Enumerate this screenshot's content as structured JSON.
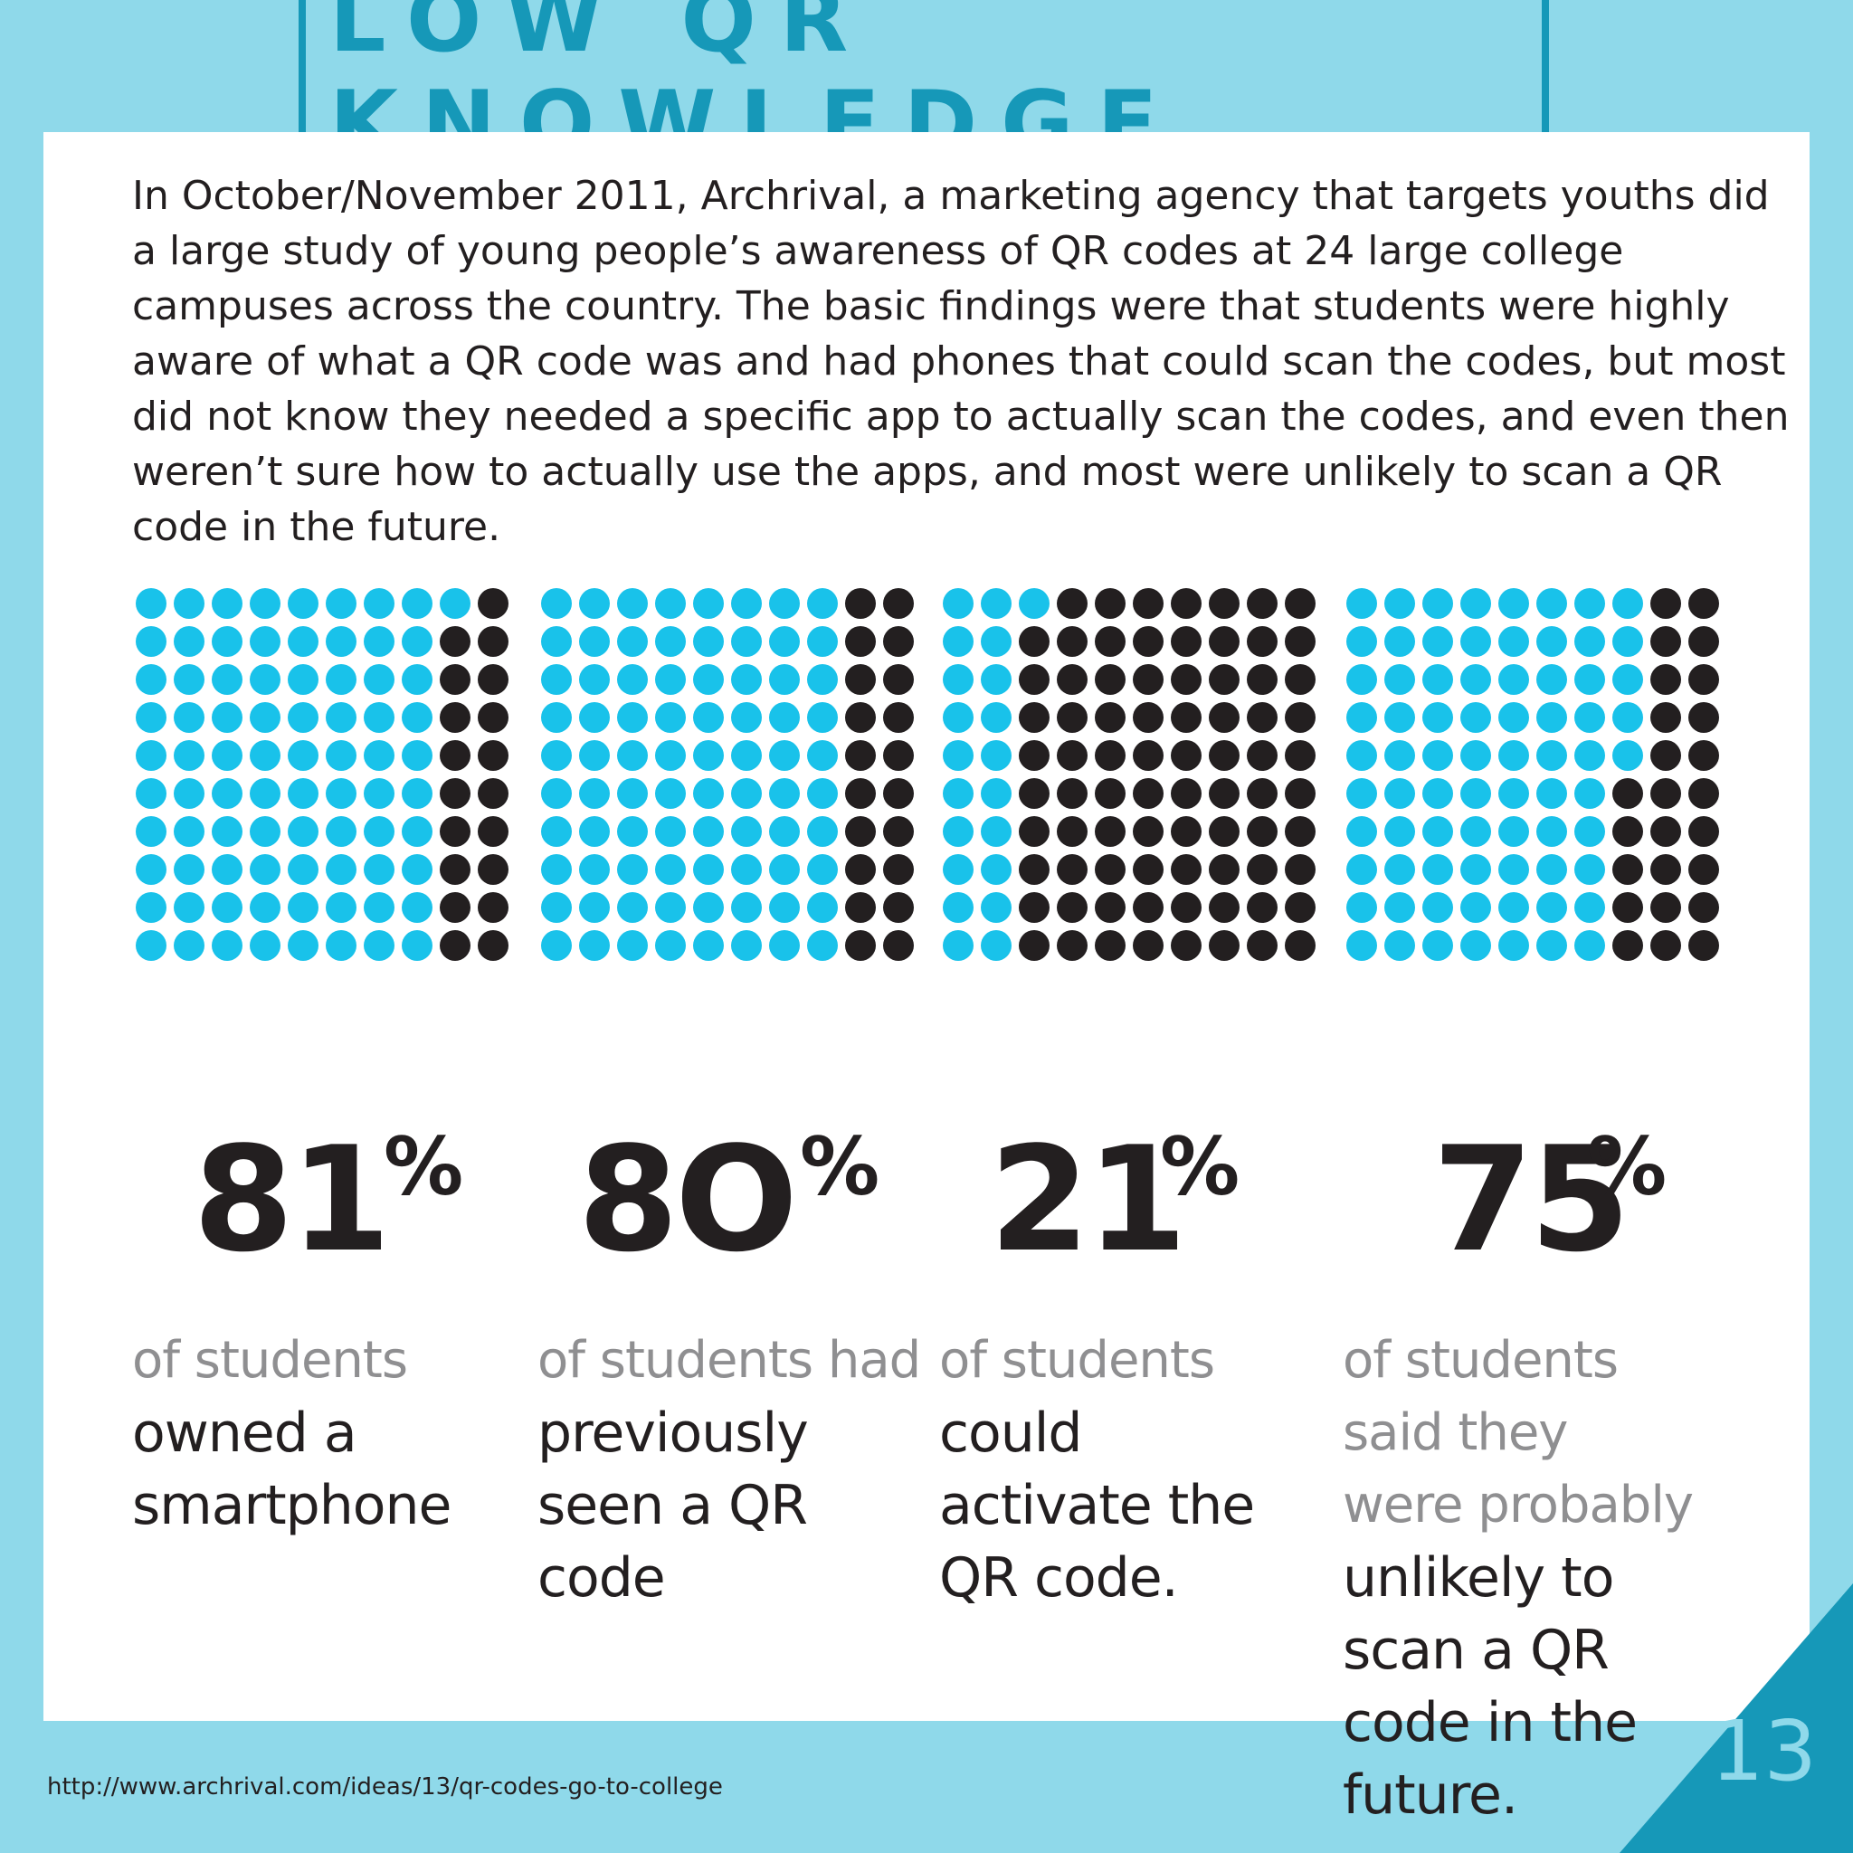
{
  "title": "LOW QR KNOWLEDGE",
  "intro": "In October/November 2011, Archrival, a marketing agency that targets youths did a large study of young people’s awareness of QR codes at 24 large college campuses across the country. The basic findings were that students were highly aware of what a QR code was and had phones that could scan the codes, but most did not know they needed a specific app to actually scan the codes, and even then weren’t sure how to actually use the apps, and  most were unlikely to scan a QR code in the future.",
  "colors": {
    "highlight": "#19c2ea",
    "remainder": "#231f20",
    "title": "#1698b8",
    "background": "#8fd9ea"
  },
  "chart_data": [
    {
      "type": "waffle",
      "value": 81,
      "grid": [
        10,
        10
      ],
      "unit": "%"
    },
    {
      "type": "waffle",
      "value": 80,
      "grid": [
        10,
        10
      ],
      "unit": "%"
    },
    {
      "type": "waffle",
      "value": 21,
      "grid": [
        10,
        10
      ],
      "unit": "%"
    },
    {
      "type": "waffle",
      "value": 75,
      "grid": [
        10,
        10
      ],
      "unit": "%"
    }
  ],
  "stats": [
    {
      "number": "81",
      "percent": "%",
      "light": [
        "of students"
      ],
      "dark": [
        "owned a",
        "smartphone"
      ]
    },
    {
      "number": "8O",
      "percent": "%",
      "light": [
        "of students had"
      ],
      "dark": [
        "previously",
        "seen a QR",
        "code"
      ]
    },
    {
      "number": "21",
      "percent": "%",
      "light": [
        "of students"
      ],
      "dark": [
        "could",
        "activate the",
        "QR code."
      ]
    },
    {
      "number": "75",
      "percent": "%",
      "light": [
        "of students",
        "said they",
        "were probably"
      ],
      "dark": [
        "unlikely to",
        "scan a QR",
        "code in the",
        "future."
      ]
    }
  ],
  "source_url": "http://www.archrival.com/ideas/13/qr-codes-go-to-college",
  "page_number": "13"
}
